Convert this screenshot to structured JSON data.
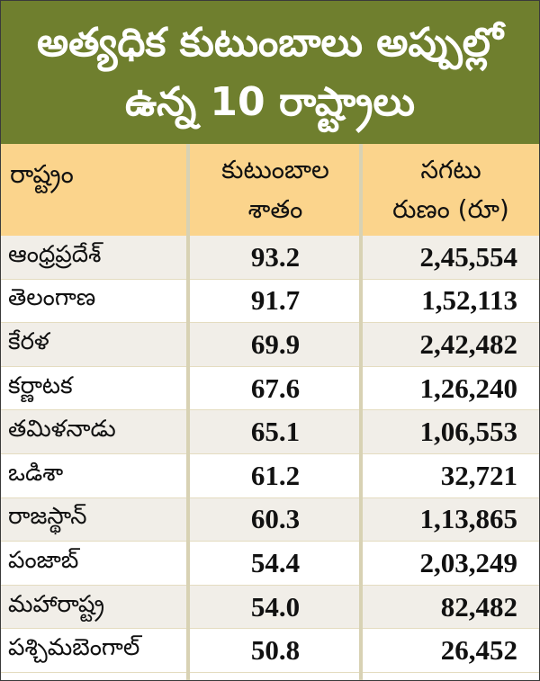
{
  "title": {
    "line1": "అత్యధిక కుటుంబాలు అప్పుల్లో",
    "line2": "ఉన్న 10 రాష్ట్రాలు"
  },
  "headers": {
    "state": "రాష్ట్రం",
    "percent_line1": "కుటుంబాల",
    "percent_line2": "శాతం",
    "debt_line1": "సగటు",
    "debt_line2": "రుణం (రూ)"
  },
  "colors": {
    "title_background": "#6f7f2e",
    "header_background": "#fbd48c",
    "row_alt_background": "#f1eee8"
  },
  "chart_data": {
    "type": "table",
    "title": "అత్యధిక కుటుంబాలు అప్పుల్లో ఉన్న 10 రాష్ట్రాలు",
    "columns": [
      "రాష్ట్రం",
      "కుటుంబాల శాతం",
      "సగటు రుణం (రూ)"
    ],
    "rows": [
      {
        "state": "ఆంధ్రప్రదేశ్",
        "percent": "93.2",
        "debt": "2,45,554"
      },
      {
        "state": "తెలంగాణ",
        "percent": "91.7",
        "debt": "1,52,113"
      },
      {
        "state": "కేరళ",
        "percent": "69.9",
        "debt": "2,42,482"
      },
      {
        "state": "కర్ణాటక",
        "percent": "67.6",
        "debt": "1,26,240"
      },
      {
        "state": "తమిళనాడు",
        "percent": "65.1",
        "debt": "1,06,553"
      },
      {
        "state": "ఒడిశా",
        "percent": "61.2",
        "debt": "32,721"
      },
      {
        "state": "రాజస్థాన్",
        "percent": "60.3",
        "debt": "1,13,865"
      },
      {
        "state": "పంజాబ్",
        "percent": "54.4",
        "debt": "2,03,249"
      },
      {
        "state": "మహారాష్ట్ర",
        "percent": "54.0",
        "debt": "82,482"
      },
      {
        "state": "పశ్చిమబెంగాల్",
        "percent": "50.8",
        "debt": "26,452"
      }
    ]
  }
}
